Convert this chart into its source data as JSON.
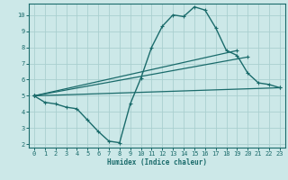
{
  "xlabel": "Humidex (Indice chaleur)",
  "ylabel": "",
  "xlim": [
    -0.5,
    23.5
  ],
  "ylim": [
    1.8,
    10.7
  ],
  "xticks": [
    0,
    1,
    2,
    3,
    4,
    5,
    6,
    7,
    8,
    9,
    10,
    11,
    12,
    13,
    14,
    15,
    16,
    17,
    18,
    19,
    20,
    21,
    22,
    23
  ],
  "yticks": [
    2,
    3,
    4,
    5,
    6,
    7,
    8,
    9,
    10
  ],
  "bg_color": "#cce8e8",
  "grid_color": "#aacfcf",
  "line_color": "#1a6b6b",
  "series": [
    {
      "x": [
        0,
        1,
        2,
        3,
        4,
        5,
        6,
        7,
        8,
        9,
        10,
        11,
        12,
        13,
        14,
        15,
        16,
        17,
        18,
        19,
        20,
        21,
        22,
        23
      ],
      "y": [
        5.0,
        4.6,
        4.5,
        4.3,
        4.2,
        3.5,
        2.8,
        2.2,
        2.1,
        4.5,
        6.1,
        8.0,
        9.3,
        10.0,
        9.9,
        10.5,
        10.3,
        9.2,
        7.8,
        7.5,
        6.4,
        5.8,
        5.7,
        5.5
      ],
      "has_markers": true,
      "linewidth": 1.0
    },
    {
      "x": [
        0,
        19
      ],
      "y": [
        5.0,
        7.8
      ],
      "has_markers": true,
      "linewidth": 0.9
    },
    {
      "x": [
        0,
        20
      ],
      "y": [
        5.0,
        7.4
      ],
      "has_markers": true,
      "linewidth": 0.9
    },
    {
      "x": [
        0,
        23
      ],
      "y": [
        5.0,
        5.5
      ],
      "has_markers": true,
      "linewidth": 0.9
    }
  ]
}
